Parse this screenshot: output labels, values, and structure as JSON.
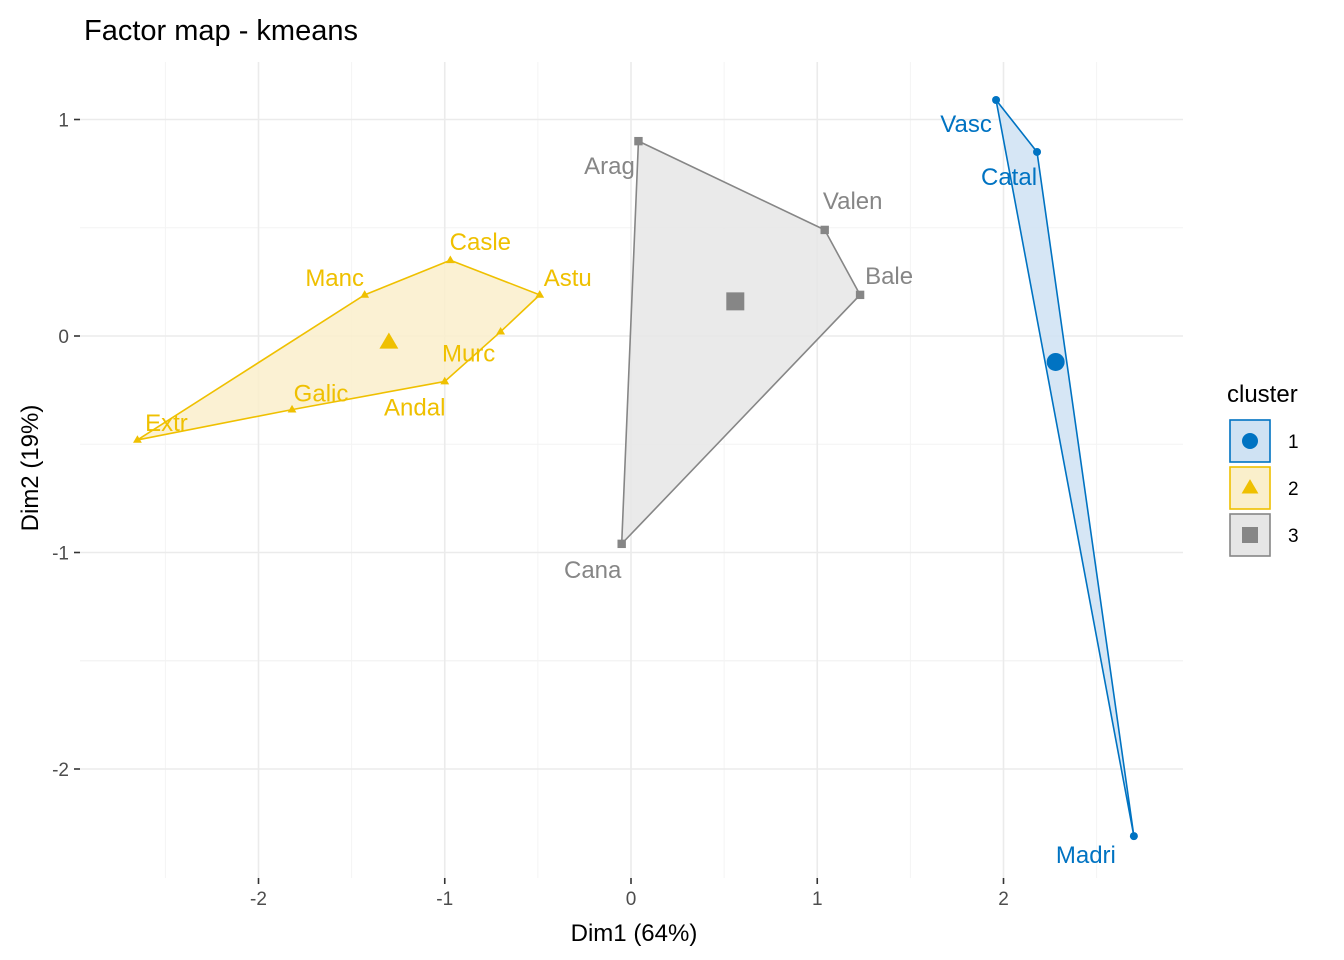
{
  "chart_data": {
    "type": "scatter",
    "title": "Factor map - kmeans",
    "xlabel": "Dim1 (64%)",
    "ylabel": "Dim2 (19%)",
    "xlim": [
      -2.65,
      2.65
    ],
    "ylim": [
      -2.4,
      1.2
    ],
    "x_ticks": [
      -2,
      -1,
      0,
      1,
      2
    ],
    "y_ticks": [
      -2,
      -1,
      0,
      1
    ],
    "x_tick_labels": [
      "-2",
      "-1",
      "0",
      "1",
      "2"
    ],
    "y_tick_labels": [
      "-2",
      "-1",
      "0",
      "1"
    ],
    "grid": true,
    "legend": {
      "title": "cluster",
      "position": "right",
      "entries": [
        "1",
        "2",
        "3"
      ]
    },
    "series": [
      {
        "name": "1",
        "color": "#0073C2",
        "fill": "#cfe2f3",
        "shape": "circle",
        "points": [
          {
            "label": "Vasc",
            "x": 1.96,
            "y": 1.09
          },
          {
            "label": "Catal",
            "x": 2.18,
            "y": 0.85
          },
          {
            "label": "Madri",
            "x": 2.7,
            "y": -2.31
          }
        ],
        "hull": [
          "Vasc",
          "Catal",
          "Madri"
        ],
        "centroid": {
          "x": 2.28,
          "y": -0.12
        }
      },
      {
        "name": "2",
        "color": "#EFC000",
        "fill": "#faefcb",
        "shape": "triangle",
        "points": [
          {
            "label": "Casle",
            "x": -0.97,
            "y": 0.35
          },
          {
            "label": "Astu",
            "x": -0.49,
            "y": 0.19
          },
          {
            "label": "Manc",
            "x": -1.43,
            "y": 0.19
          },
          {
            "label": "Murc",
            "x": -0.7,
            "y": 0.02
          },
          {
            "label": "Andal",
            "x": -1.0,
            "y": -0.21
          },
          {
            "label": "Galic",
            "x": -1.82,
            "y": -0.34
          },
          {
            "label": "Extr",
            "x": -2.65,
            "y": -0.48
          }
        ],
        "hull": [
          "Casle",
          "Astu",
          "Murc",
          "Andal",
          "Galic",
          "Extr",
          "Manc"
        ],
        "centroid": {
          "x": -1.3,
          "y": -0.03
        }
      },
      {
        "name": "3",
        "color": "#868686",
        "fill": "#e6e6e6",
        "shape": "square",
        "points": [
          {
            "label": "Arag",
            "x": 0.04,
            "y": 0.9
          },
          {
            "label": "Valen",
            "x": 1.04,
            "y": 0.49
          },
          {
            "label": "Bale",
            "x": 1.23,
            "y": 0.19
          },
          {
            "label": "Cana",
            "x": -0.05,
            "y": -0.96
          }
        ],
        "hull": [
          "Arag",
          "Valen",
          "Bale",
          "Cana"
        ],
        "centroid": {
          "x": 0.56,
          "y": 0.16
        }
      }
    ]
  }
}
